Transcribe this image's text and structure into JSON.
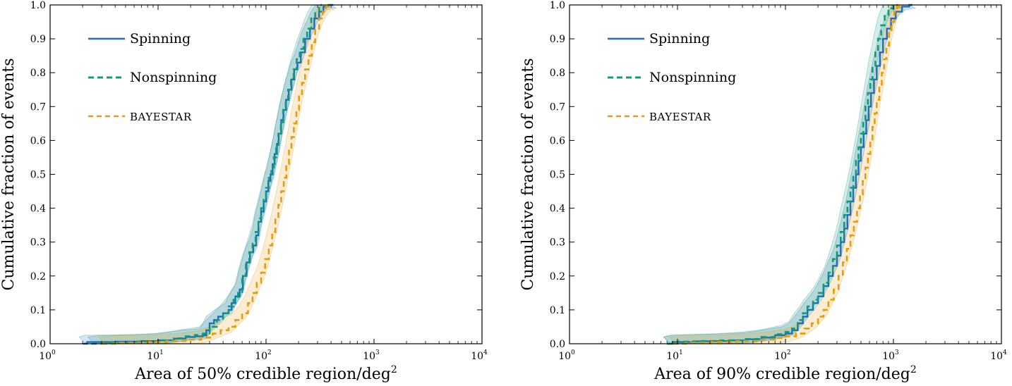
{
  "chart_data": [
    {
      "type": "line",
      "xscale": "log",
      "xlim": [
        1,
        10000
      ],
      "ylim": [
        0,
        1
      ],
      "xticks": [
        "10",
        "10",
        "10",
        "10",
        "10"
      ],
      "xtick_exponents": [
        "0",
        "1",
        "2",
        "3",
        "4"
      ],
      "yticks": [
        "0.0",
        "0.1",
        "0.2",
        "0.3",
        "0.4",
        "0.5",
        "0.6",
        "0.7",
        "0.8",
        "0.9",
        "1.0"
      ],
      "xlabel": "Area of 50% credible region/deg",
      "xlabel_exponent": "2",
      "ylabel": "Cumulative fraction of events",
      "legend_position": "top-left",
      "series": [
        {
          "name": "Spinning",
          "style": "solid",
          "color": "#1f6fb5",
          "points": [
            [
              2,
              0.0
            ],
            [
              2.2,
              0.005
            ],
            [
              4,
              0.006
            ],
            [
              7,
              0.008
            ],
            [
              10,
              0.01
            ],
            [
              14,
              0.015
            ],
            [
              18,
              0.02
            ],
            [
              22,
              0.022
            ],
            [
              26,
              0.025
            ],
            [
              28,
              0.04
            ],
            [
              30,
              0.06
            ],
            [
              33,
              0.07
            ],
            [
              36,
              0.08
            ],
            [
              40,
              0.09
            ],
            [
              45,
              0.1
            ],
            [
              48,
              0.12
            ],
            [
              52,
              0.14
            ],
            [
              57,
              0.16
            ],
            [
              61,
              0.2
            ],
            [
              66,
              0.24
            ],
            [
              71,
              0.27
            ],
            [
              76,
              0.29
            ],
            [
              81,
              0.32
            ],
            [
              85,
              0.36
            ],
            [
              90,
              0.39
            ],
            [
              95,
              0.42
            ],
            [
              100,
              0.45
            ],
            [
              105,
              0.48
            ],
            [
              110,
              0.5
            ],
            [
              115,
              0.53
            ],
            [
              120,
              0.56
            ],
            [
              126,
              0.59
            ],
            [
              131,
              0.62
            ],
            [
              138,
              0.66
            ],
            [
              145,
              0.69
            ],
            [
              153,
              0.72
            ],
            [
              162,
              0.75
            ],
            [
              172,
              0.78
            ],
            [
              182,
              0.81
            ],
            [
              195,
              0.83
            ],
            [
              210,
              0.86
            ],
            [
              230,
              0.9
            ],
            [
              255,
              0.93
            ],
            [
              280,
              0.96
            ],
            [
              310,
              0.98
            ],
            [
              340,
              0.995
            ],
            [
              380,
              1.0
            ],
            [
              420,
              1.0
            ]
          ],
          "band": [
            0.02,
            0.01
          ]
        },
        {
          "name": "Nonspinning",
          "style": "dashed",
          "color": "#0f9d76",
          "points": [
            [
              2.4,
              0.0
            ],
            [
              3,
              0.004
            ],
            [
              6,
              0.006
            ],
            [
              10,
              0.01
            ],
            [
              14,
              0.016
            ],
            [
              18,
              0.022
            ],
            [
              22,
              0.026
            ],
            [
              26,
              0.03
            ],
            [
              30,
              0.05
            ],
            [
              35,
              0.07
            ],
            [
              40,
              0.09
            ],
            [
              45,
              0.11
            ],
            [
              50,
              0.13
            ],
            [
              55,
              0.15
            ],
            [
              60,
              0.2
            ],
            [
              65,
              0.24
            ],
            [
              70,
              0.27
            ],
            [
              75,
              0.3
            ],
            [
              80,
              0.33
            ],
            [
              85,
              0.37
            ],
            [
              90,
              0.4
            ],
            [
              95,
              0.43
            ],
            [
              100,
              0.46
            ],
            [
              106,
              0.49
            ],
            [
              112,
              0.52
            ],
            [
              118,
              0.55
            ],
            [
              124,
              0.58
            ],
            [
              130,
              0.62
            ],
            [
              137,
              0.65
            ],
            [
              144,
              0.69
            ],
            [
              152,
              0.72
            ],
            [
              160,
              0.75
            ],
            [
              170,
              0.78
            ],
            [
              180,
              0.81
            ],
            [
              192,
              0.84
            ],
            [
              205,
              0.87
            ],
            [
              222,
              0.9
            ],
            [
              240,
              0.93
            ],
            [
              262,
              0.96
            ],
            [
              285,
              0.98
            ],
            [
              310,
              1.0
            ],
            [
              330,
              1.0
            ]
          ],
          "band": [
            0.02,
            0.01
          ]
        },
        {
          "name": "BAYESTAR",
          "style": "dashed",
          "color": "#e59d0f",
          "points": [
            [
              3,
              0.0
            ],
            [
              4,
              0.003
            ],
            [
              8,
              0.005
            ],
            [
              12,
              0.008
            ],
            [
              18,
              0.012
            ],
            [
              25,
              0.018
            ],
            [
              32,
              0.03
            ],
            [
              38,
              0.04
            ],
            [
              45,
              0.05
            ],
            [
              52,
              0.07
            ],
            [
              60,
              0.09
            ],
            [
              68,
              0.12
            ],
            [
              75,
              0.15
            ],
            [
              82,
              0.18
            ],
            [
              90,
              0.21
            ],
            [
              98,
              0.25
            ],
            [
              106,
              0.29
            ],
            [
              114,
              0.33
            ],
            [
              122,
              0.37
            ],
            [
              130,
              0.41
            ],
            [
              138,
              0.45
            ],
            [
              146,
              0.49
            ],
            [
              154,
              0.53
            ],
            [
              163,
              0.57
            ],
            [
              172,
              0.61
            ],
            [
              181,
              0.65
            ],
            [
              191,
              0.69
            ],
            [
              202,
              0.73
            ],
            [
              215,
              0.77
            ],
            [
              230,
              0.81
            ],
            [
              247,
              0.85
            ],
            [
              265,
              0.89
            ],
            [
              285,
              0.93
            ],
            [
              310,
              0.96
            ],
            [
              335,
              0.98
            ],
            [
              360,
              0.995
            ],
            [
              380,
              1.0
            ],
            [
              400,
              1.0
            ]
          ],
          "band": [
            0.02,
            0.015
          ]
        }
      ]
    },
    {
      "type": "line",
      "xscale": "log",
      "xlim": [
        1,
        10000
      ],
      "ylim": [
        0,
        1
      ],
      "xticks": [
        "10",
        "10",
        "10",
        "10",
        "10"
      ],
      "xtick_exponents": [
        "0",
        "1",
        "2",
        "3",
        "4"
      ],
      "yticks": [
        "0.0",
        "0.1",
        "0.2",
        "0.3",
        "0.4",
        "0.5",
        "0.6",
        "0.7",
        "0.8",
        "0.9",
        "1.0"
      ],
      "xlabel": "Area of 90% credible region/deg",
      "xlabel_exponent": "2",
      "ylabel": "Cumulative fraction of events",
      "legend_position": "top-left",
      "series": [
        {
          "name": "Spinning",
          "style": "solid",
          "color": "#1f6fb5",
          "points": [
            [
              8,
              0.0
            ],
            [
              9,
              0.005
            ],
            [
              14,
              0.007
            ],
            [
              20,
              0.008
            ],
            [
              30,
              0.01
            ],
            [
              45,
              0.013
            ],
            [
              60,
              0.018
            ],
            [
              80,
              0.025
            ],
            [
              100,
              0.03
            ],
            [
              115,
              0.04
            ],
            [
              130,
              0.06
            ],
            [
              145,
              0.08
            ],
            [
              160,
              0.1
            ],
            [
              180,
              0.12
            ],
            [
              200,
              0.14
            ],
            [
              225,
              0.17
            ],
            [
              250,
              0.2
            ],
            [
              275,
              0.23
            ],
            [
              300,
              0.26
            ],
            [
              325,
              0.3
            ],
            [
              350,
              0.34
            ],
            [
              375,
              0.38
            ],
            [
              400,
              0.42
            ],
            [
              425,
              0.46
            ],
            [
              450,
              0.5
            ],
            [
              475,
              0.54
            ],
            [
              500,
              0.58
            ],
            [
              530,
              0.62
            ],
            [
              560,
              0.66
            ],
            [
              590,
              0.7
            ],
            [
              620,
              0.74
            ],
            [
              660,
              0.78
            ],
            [
              700,
              0.82
            ],
            [
              750,
              0.86
            ],
            [
              800,
              0.9
            ],
            [
              870,
              0.93
            ],
            [
              950,
              0.96
            ],
            [
              1050,
              0.98
            ],
            [
              1200,
              0.995
            ],
            [
              1400,
              1.0
            ],
            [
              1500,
              1.0
            ]
          ],
          "band": [
            0.02,
            0.01
          ]
        },
        {
          "name": "Nonspinning",
          "style": "dashed",
          "color": "#0f9d76",
          "points": [
            [
              8,
              0.0
            ],
            [
              10,
              0.006
            ],
            [
              16,
              0.008
            ],
            [
              25,
              0.01
            ],
            [
              40,
              0.014
            ],
            [
              60,
              0.02
            ],
            [
              80,
              0.028
            ],
            [
              100,
              0.035
            ],
            [
              115,
              0.045
            ],
            [
              130,
              0.07
            ],
            [
              145,
              0.09
            ],
            [
              160,
              0.11
            ],
            [
              180,
              0.13
            ],
            [
              200,
              0.15
            ],
            [
              225,
              0.18
            ],
            [
              250,
              0.21
            ],
            [
              275,
              0.25
            ],
            [
              300,
              0.29
            ],
            [
              325,
              0.33
            ],
            [
              350,
              0.38
            ],
            [
              375,
              0.42
            ],
            [
              400,
              0.46
            ],
            [
              425,
              0.5
            ],
            [
              450,
              0.54
            ],
            [
              475,
              0.58
            ],
            [
              500,
              0.62
            ],
            [
              525,
              0.66
            ],
            [
              550,
              0.7
            ],
            [
              580,
              0.74
            ],
            [
              610,
              0.78
            ],
            [
              640,
              0.82
            ],
            [
              680,
              0.86
            ],
            [
              720,
              0.9
            ],
            [
              770,
              0.94
            ],
            [
              830,
              0.97
            ],
            [
              900,
              0.99
            ],
            [
              1000,
              1.0
            ],
            [
              1100,
              1.0
            ]
          ],
          "band": [
            0.02,
            0.01
          ]
        },
        {
          "name": "BAYESTAR",
          "style": "dashed",
          "color": "#e59d0f",
          "points": [
            [
              9,
              0.0
            ],
            [
              12,
              0.003
            ],
            [
              20,
              0.005
            ],
            [
              35,
              0.008
            ],
            [
              55,
              0.012
            ],
            [
              80,
              0.017
            ],
            [
              100,
              0.022
            ],
            [
              125,
              0.03
            ],
            [
              150,
              0.045
            ],
            [
              175,
              0.06
            ],
            [
              200,
              0.08
            ],
            [
              225,
              0.1
            ],
            [
              250,
              0.13
            ],
            [
              280,
              0.16
            ],
            [
              310,
              0.2
            ],
            [
              340,
              0.24
            ],
            [
              370,
              0.28
            ],
            [
              400,
              0.32
            ],
            [
              430,
              0.36
            ],
            [
              460,
              0.4
            ],
            [
              490,
              0.44
            ],
            [
              520,
              0.48
            ],
            [
              550,
              0.52
            ],
            [
              580,
              0.56
            ],
            [
              610,
              0.6
            ],
            [
              640,
              0.64
            ],
            [
              670,
              0.68
            ],
            [
              700,
              0.72
            ],
            [
              740,
              0.76
            ],
            [
              780,
              0.8
            ],
            [
              820,
              0.84
            ],
            [
              860,
              0.88
            ],
            [
              910,
              0.92
            ],
            [
              960,
              0.95
            ],
            [
              1020,
              0.98
            ],
            [
              1080,
              0.995
            ],
            [
              1150,
              1.0
            ],
            [
              1200,
              1.0
            ]
          ],
          "band": [
            0.02,
            0.015
          ]
        }
      ]
    }
  ]
}
